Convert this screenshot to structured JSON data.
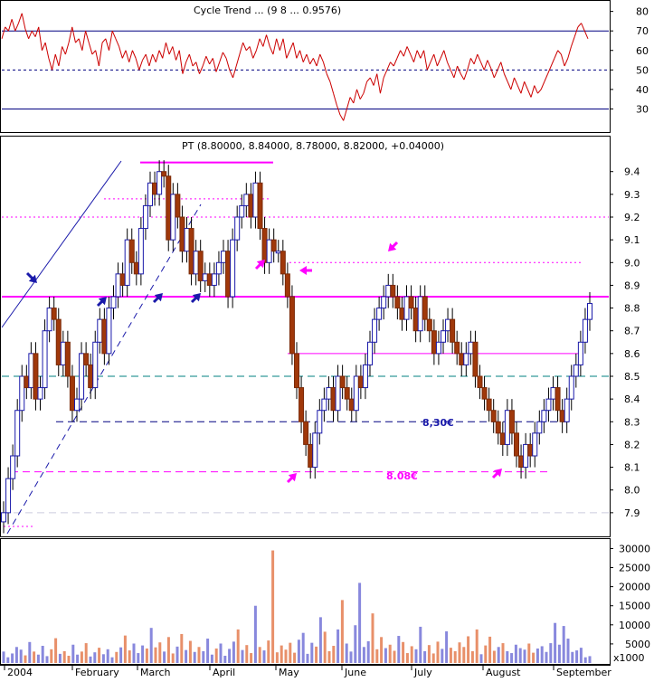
{
  "chart_data": [
    {
      "panel": "indicator",
      "type": "line",
      "header": "Cycle Trend ... (9 8 ... 0.9576)",
      "y_ticks": [
        "80",
        "70",
        "60",
        "50",
        "40",
        "30"
      ],
      "ylim": [
        20,
        84
      ],
      "reference_lines": [
        {
          "value": 70,
          "style": "solid",
          "color": "#000080"
        },
        {
          "value": 50,
          "style": "dashed",
          "color": "#000080"
        },
        {
          "value": 30,
          "style": "solid",
          "color": "#000080"
        }
      ],
      "series": [
        {
          "color": "#cc0000",
          "values": [
            66,
            72,
            70,
            76,
            70,
            74,
            79,
            71,
            66,
            70,
            67,
            72,
            60,
            64,
            56,
            50,
            58,
            52,
            62,
            58,
            64,
            72,
            64,
            66,
            60,
            70,
            64,
            58,
            60,
            52,
            64,
            66,
            60,
            70,
            66,
            62,
            56,
            60,
            54,
            60,
            56,
            50,
            55,
            58,
            52,
            58,
            54,
            60,
            56,
            64,
            58,
            62,
            55,
            60,
            48,
            54,
            58,
            52,
            54,
            48,
            52,
            57,
            53,
            56,
            49,
            54,
            59,
            56,
            50,
            46,
            52,
            58,
            64,
            60,
            62,
            56,
            60,
            66,
            62,
            68,
            62,
            58,
            66,
            60,
            66,
            56,
            60,
            64,
            56,
            60,
            54,
            58,
            53,
            56,
            52,
            58,
            54,
            48,
            44,
            38,
            32,
            27,
            24,
            30,
            36,
            33,
            40,
            35,
            38,
            44,
            46,
            42,
            48,
            38,
            46,
            50,
            54,
            52,
            56,
            60,
            57,
            62,
            58,
            54,
            60,
            56,
            60,
            50,
            54,
            58,
            52,
            56,
            60,
            54,
            50,
            46,
            52,
            48,
            45,
            50,
            56,
            53,
            58,
            54,
            50,
            55,
            51,
            46,
            50,
            54,
            48,
            44,
            40,
            46,
            42,
            38,
            44,
            40,
            36,
            42,
            38,
            40,
            44,
            48,
            52,
            56,
            60,
            58,
            52,
            56,
            62,
            67,
            72,
            74,
            70,
            66
          ]
        }
      ]
    },
    {
      "panel": "price",
      "type": "candlestick",
      "header": "PT (8.80000, 8.84000, 8.78000, 8.82000, +0.04000)",
      "x_labels": [
        "2004",
        "February",
        "March",
        "April",
        "May",
        "June",
        "July",
        "August",
        "September"
      ],
      "y_ticks": [
        "9.4",
        "9.3",
        "9.2",
        "9.1",
        "9.0",
        "8.9",
        "8.8",
        "8.7",
        "8.6",
        "8.5",
        "8.4",
        "8.3",
        "8.2",
        "8.1",
        "8.0",
        "7.9"
      ],
      "ylim": [
        7.8,
        9.55
      ],
      "closes": [
        7.9,
        8.05,
        8.15,
        8.35,
        8.5,
        8.45,
        8.6,
        8.4,
        8.45,
        8.7,
        8.8,
        8.75,
        8.55,
        8.65,
        8.5,
        8.35,
        8.4,
        8.6,
        8.55,
        8.45,
        8.65,
        8.75,
        8.6,
        8.8,
        8.85,
        8.95,
        8.9,
        9.1,
        9.0,
        8.95,
        9.15,
        9.25,
        9.35,
        9.3,
        9.4,
        9.38,
        9.1,
        9.3,
        9.2,
        9.05,
        9.15,
        8.95,
        9.05,
        8.92,
        8.95,
        8.9,
        8.95,
        9.0,
        9.05,
        8.85,
        9.1,
        9.2,
        9.25,
        9.3,
        9.2,
        9.35,
        9.15,
        9.0,
        9.1,
        9.05,
        9.05,
        8.95,
        8.85,
        8.6,
        8.45,
        8.3,
        8.2,
        8.1,
        8.25,
        8.35,
        8.4,
        8.45,
        8.35,
        8.5,
        8.45,
        8.4,
        8.35,
        8.5,
        8.45,
        8.55,
        8.65,
        8.75,
        8.8,
        8.85,
        8.9,
        8.85,
        8.8,
        8.75,
        8.85,
        8.8,
        8.7,
        8.85,
        8.75,
        8.7,
        8.6,
        8.65,
        8.7,
        8.75,
        8.65,
        8.6,
        8.55,
        8.6,
        8.65,
        8.5,
        8.45,
        8.4,
        8.35,
        8.3,
        8.25,
        8.2,
        8.35,
        8.25,
        8.15,
        8.1,
        8.2,
        8.15,
        8.25,
        8.3,
        8.35,
        8.4,
        8.45,
        8.35,
        8.3,
        8.4,
        8.5,
        8.55,
        8.65,
        8.75,
        8.82
      ],
      "support_resistance": [
        {
          "value": 9.44,
          "color": "#ff00ff",
          "style": "solid"
        },
        {
          "value": 9.28,
          "color": "#ff00ff",
          "style": "dotted"
        },
        {
          "value": 9.2,
          "color": "#ff00ff",
          "style": "dotted"
        },
        {
          "value": 9.0,
          "color": "#ff00ff",
          "style": "dotted"
        },
        {
          "value": 8.85,
          "color": "#ff00ff",
          "style": "solid"
        },
        {
          "value": 8.6,
          "color": "#ff00ff",
          "style": "solid"
        },
        {
          "value": 8.5,
          "color": "#008080",
          "style": "dashed"
        },
        {
          "value": 8.3,
          "color": "#000080",
          "style": "dashed"
        },
        {
          "value": 8.08,
          "color": "#ff00ff",
          "style": "dashed"
        },
        {
          "value": 7.9,
          "color": "#ccccdd",
          "style": "dashed"
        },
        {
          "value": 7.84,
          "color": "#ff00ff",
          "style": "dotted"
        }
      ],
      "annotations": [
        "8,30€",
        "8.08€"
      ]
    },
    {
      "panel": "volume",
      "type": "bar",
      "y_ticks": [
        "30000",
        "25000",
        "20000",
        "15000",
        "10000",
        "5000"
      ],
      "unit_label": "x1000",
      "ylim": [
        0,
        32000
      ],
      "values": [
        3000,
        1500,
        2500,
        4200,
        3500,
        2000,
        5500,
        3000,
        2200,
        4500,
        1800,
        3600,
        6500,
        2400,
        3100,
        1900,
        4800,
        2200,
        3000,
        5200,
        1700,
        2800,
        4000,
        2300,
        3600,
        1500,
        2900,
        4100,
        7200,
        3300,
        5100,
        2600,
        4600,
        3800,
        9200,
        4100,
        5400,
        3000,
        6800,
        2500,
        4300,
        7600,
        3400,
        5800,
        2900,
        4200,
        3100,
        6400,
        2200,
        3800,
        5100,
        1900,
        3700,
        5600,
        8800,
        3400,
        4700,
        2600,
        15000,
        4200,
        3300,
        5900,
        29500,
        2800,
        4600,
        3500,
        5300,
        2700,
        6100,
        7900,
        2400,
        5300,
        4300,
        12000,
        8200,
        3100,
        4500,
        8800,
        16500,
        5100,
        3000,
        9900,
        21000,
        4200,
        5700,
        13000,
        3600,
        6800,
        3900,
        4800,
        3200,
        7100,
        5500,
        2600,
        4400,
        3600,
        9500,
        3100,
        4700,
        2500,
        5600,
        3700,
        8300,
        4000,
        3100,
        5400,
        4200,
        7000,
        3100,
        8800,
        2300,
        4600,
        6900,
        3200,
        4200,
        5200,
        3100,
        2600,
        4800,
        3900,
        3500,
        5100,
        2700,
        3800,
        4400,
        2900,
        5200,
        10500,
        4800,
        9700,
        6400,
        2900,
        3300,
        4000,
        1500,
        1800
      ]
    }
  ]
}
